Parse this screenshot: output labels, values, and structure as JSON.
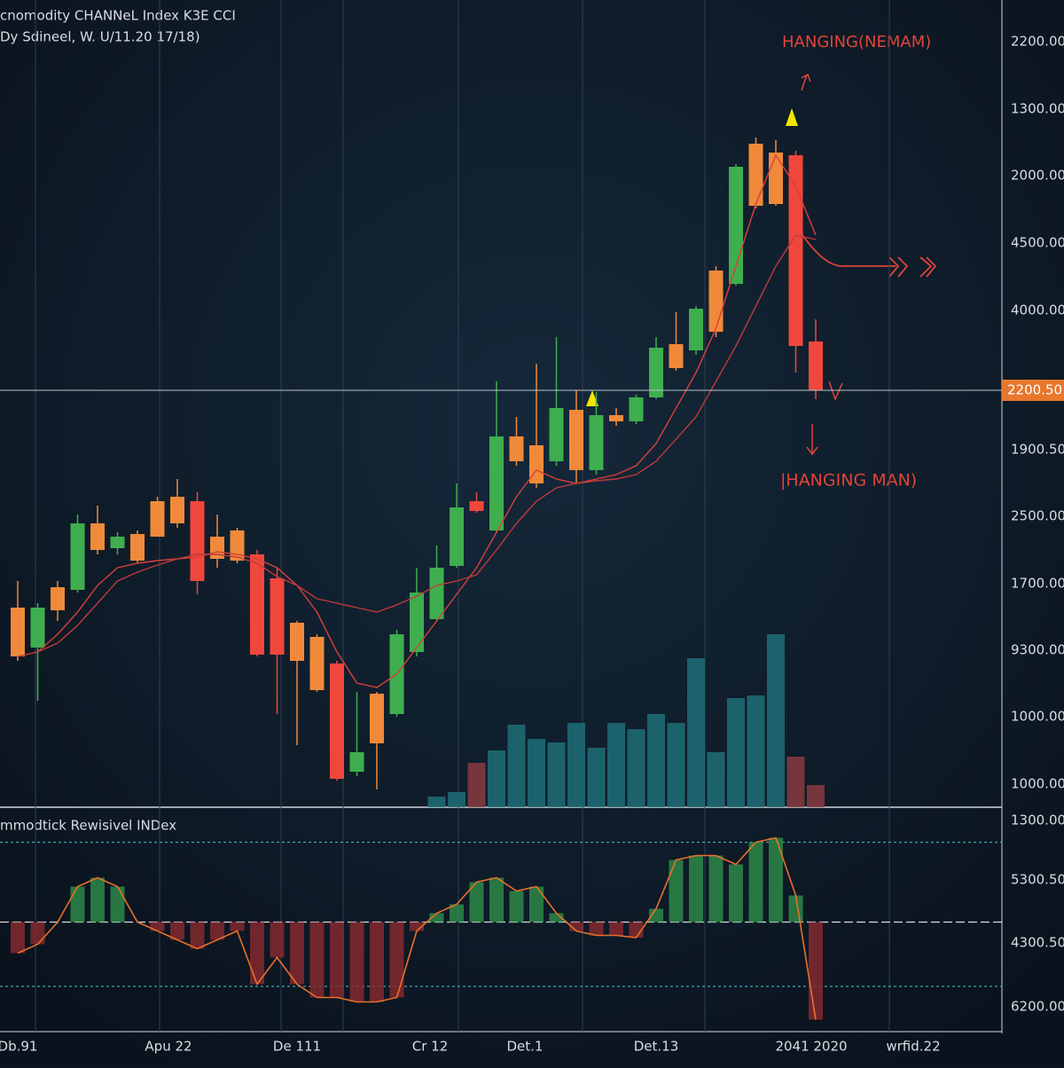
{
  "chart_data": [
    {
      "type": "candlestick",
      "title": "cnomodity CHANNeL Index K3E CCI",
      "subtitle": "Dy Sdineel, W. U/11.20 17/18)",
      "ylim": [
        0,
        91
      ],
      "open": [
        17,
        18,
        22.2,
        24.5,
        29,
        29.2,
        27.8,
        30.5,
        32,
        34.5,
        28,
        27.8,
        28.5,
        25.8,
        16.5,
        13.2,
        16.2,
        4,
        7.2,
        10.5,
        17.5,
        21.2,
        27.2,
        34.5,
        31.2,
        39,
        36.5,
        39,
        38,
        38,
        43.5,
        43.5,
        46.2,
        49.5,
        51.5,
        53.6,
        59,
        67.8,
        68,
        73.5,
        52.5
      ],
      "high": [
        25.5,
        23,
        25.5,
        33,
        34,
        31,
        31.2,
        35,
        37,
        35.5,
        33,
        31.5,
        29,
        27,
        21,
        19.5,
        16.5,
        13,
        13,
        20,
        27,
        29.5,
        36.5,
        35.5,
        48,
        44,
        50,
        53,
        47,
        46.8,
        45,
        46.5,
        53,
        55.8,
        56.5,
        61,
        72.5,
        75.5,
        75.2,
        74,
        55
      ],
      "low": [
        16.5,
        12,
        21,
        24.2,
        28.5,
        28.5,
        27.5,
        30.5,
        31.5,
        24,
        27,
        27.5,
        17,
        10.5,
        7,
        13,
        3,
        3.5,
        2,
        10.2,
        17,
        21,
        27,
        33.2,
        31,
        38.5,
        36,
        38.5,
        36.5,
        37.5,
        43,
        43.2,
        46,
        49.2,
        51,
        53,
        58.8,
        67.5,
        67.8,
        49,
        46
      ],
      "close": [
        22.5,
        22.5,
        24.8,
        32,
        32,
        30.5,
        30.8,
        34.5,
        35,
        25.5,
        30.5,
        31.2,
        17.2,
        17.2,
        20.8,
        19.2,
        3.2,
        6.2,
        12.8,
        19.5,
        24.2,
        27,
        33.8,
        33.4,
        41.8,
        41.8,
        40.8,
        45,
        44.8,
        44.2,
        44.2,
        46.2,
        51.8,
        52.2,
        56.2,
        60.5,
        72.2,
        74.8,
        73.8,
        52,
        47
      ],
      "candle_colors": [
        "#f08a3a",
        "#3fae4e",
        "#f08a3a",
        "#3fae4e",
        "#f08a3a",
        "#3fae4e",
        "#f08a3a",
        "#f08a3a",
        "#f08a3a",
        "#f0473c",
        "#f08a3a",
        "#f08a3a",
        "#f0473c",
        "#f0473c",
        "#f08a3a",
        "#f08a3a",
        "#f0473c",
        "#3fae4e",
        "#f08a3a",
        "#3fae4e",
        "#3fae4e",
        "#3fae4e",
        "#3fae4e",
        "#f0473c",
        "#3fae4e",
        "#f08a3a",
        "#f08a3a",
        "#3fae4e",
        "#f08a3a",
        "#3fae4e",
        "#f08a3a",
        "#3fae4e",
        "#3fae4e",
        "#f08a3a",
        "#3fae4e",
        "#f08a3a",
        "#3fae4e",
        "#f08a3a",
        "#f08a3a",
        "#f0473c",
        "#f0473c"
      ],
      "moving_averages": [
        {
          "color": "#d8403a",
          "values": [
            17,
            17.5,
            19.5,
            22,
            25,
            27,
            27.5,
            27.8,
            28,
            28.2,
            28.8,
            28.5,
            28,
            27,
            25,
            22,
            17.5,
            14,
            13.5,
            15,
            18,
            21,
            24,
            27,
            31,
            35,
            38,
            37,
            36.5,
            37,
            37.5,
            38.5,
            41,
            45,
            49,
            54,
            61,
            68,
            73.5,
            70,
            64.5
          ]
        },
        {
          "color": "#c0393a",
          "values": [
            17,
            17.5,
            18.5,
            20.5,
            23,
            25.5,
            26.5,
            27.3,
            28,
            28.5,
            28.5,
            28.2,
            27.5,
            26,
            25,
            23.5,
            23,
            22.5,
            22,
            22.8,
            23.8,
            25,
            25.5,
            26.2,
            29,
            32,
            34.5,
            36,
            36.5,
            36.8,
            37,
            37.5,
            39,
            41.5,
            44,
            48,
            52,
            56.5,
            61,
            64.5,
            64
          ]
        }
      ],
      "volume": {
        "ylim": [
          0,
          910
        ],
        "color": "#1f6f78",
        "down_color": "#8a3a40",
        "values": [
          null,
          null,
          null,
          null,
          null,
          null,
          null,
          null,
          null,
          null,
          null,
          null,
          null,
          null,
          null,
          null,
          null,
          null,
          null,
          null,
          null,
          12,
          17,
          50,
          64,
          93,
          77,
          73,
          95,
          67,
          95,
          88,
          105,
          95,
          168,
          62,
          123,
          126,
          195,
          57,
          25
        ]
      },
      "annotations": [
        "HANGING(NEMAM)",
        "|HANGING MAN)"
      ],
      "price_axis_labels": [
        "2200.00",
        "1300.00",
        "2000.00",
        "4500.00",
        "4000.00",
        "1900.50",
        "2500.00",
        "1700.00",
        "9300.00",
        "1000.00",
        "1000.00"
      ],
      "current_price_label": "2200.50",
      "x_labels": [
        "Db.91",
        "Apu 22",
        "De 111",
        "Cr 12",
        "Det.1",
        "Det.13",
        "2041 2020",
        "wrfid.22"
      ]
    },
    {
      "type": "line",
      "title": "mmodtick Rewisivel INDex",
      "ylim": [
        0,
        100
      ],
      "levels": [
        85,
        49,
        20
      ],
      "color": "#e8702a",
      "up_color": "#2f8f4a",
      "down_color": "#8b2a30",
      "values": [
        35,
        39,
        49,
        65,
        69,
        65,
        49,
        45,
        41,
        37,
        41,
        45,
        21,
        33,
        21,
        15,
        15,
        13,
        13,
        15,
        45,
        53,
        57,
        67,
        69,
        63,
        65,
        53,
        45,
        43,
        43,
        42,
        55,
        77,
        79,
        79,
        75,
        85,
        87,
        61,
        5
      ],
      "axis_labels": [
        "1300.00",
        "5300.50",
        "4300.50",
        "6200.00"
      ]
    }
  ]
}
